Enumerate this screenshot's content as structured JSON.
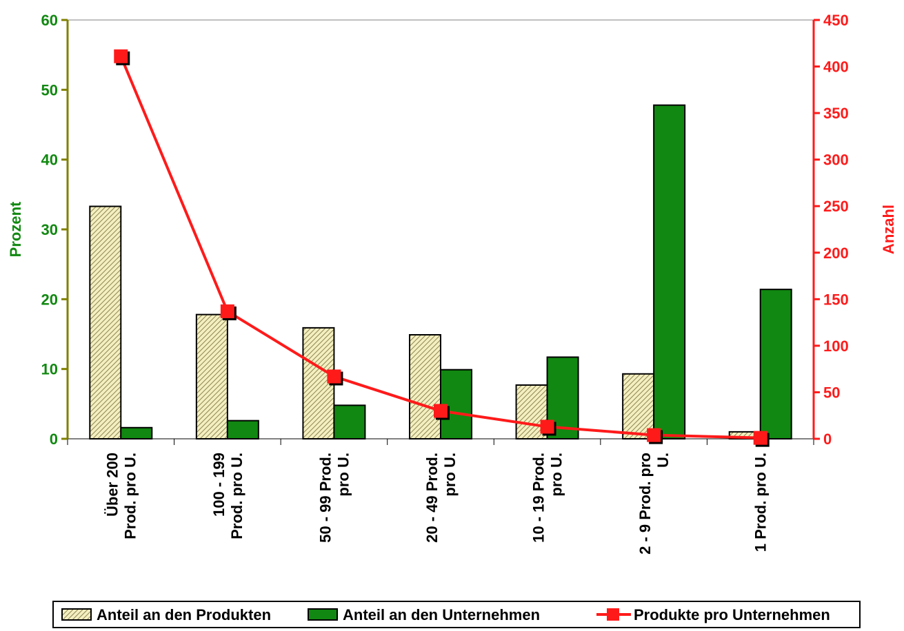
{
  "chart_data": {
    "type": "bar",
    "categories": [
      [
        "Über 200",
        "Prod. pro U."
      ],
      [
        "100 - 199",
        "Prod. pro U."
      ],
      [
        "50 - 99 Prod.",
        "pro U."
      ],
      [
        "20 - 49 Prod.",
        "pro U."
      ],
      [
        "10 - 19 Prod.",
        "pro U."
      ],
      [
        "2 - 9 Prod. pro",
        "U."
      ],
      [
        "1 Prod. pro U."
      ]
    ],
    "series": [
      {
        "name": "Anteil an den Produkten",
        "kind": "bar",
        "axis": "left",
        "values": [
          33.3,
          17.8,
          15.9,
          14.9,
          7.7,
          9.3,
          1.0
        ],
        "color": "#e0d890"
      },
      {
        "name": "Anteil an den Unternehmen",
        "kind": "bar",
        "axis": "left",
        "values": [
          1.6,
          2.6,
          4.8,
          9.9,
          11.7,
          47.8,
          21.4
        ],
        "color": "#118811"
      },
      {
        "name": "Produkte pro Unternehmen",
        "kind": "line",
        "axis": "right",
        "values": [
          411,
          137,
          67,
          30,
          13,
          4,
          1
        ],
        "color": "#ff1a1a"
      }
    ],
    "ylabel": "Prozent",
    "y2label": "Anzahl",
    "ylim": [
      0,
      60
    ],
    "y2lim": [
      0,
      450
    ],
    "yticks": [
      0,
      10,
      20,
      30,
      40,
      50,
      60
    ],
    "y2ticks": [
      0,
      50,
      100,
      150,
      200,
      250,
      300,
      350,
      400,
      450
    ],
    "grid": false,
    "legend_position": "bottom"
  }
}
